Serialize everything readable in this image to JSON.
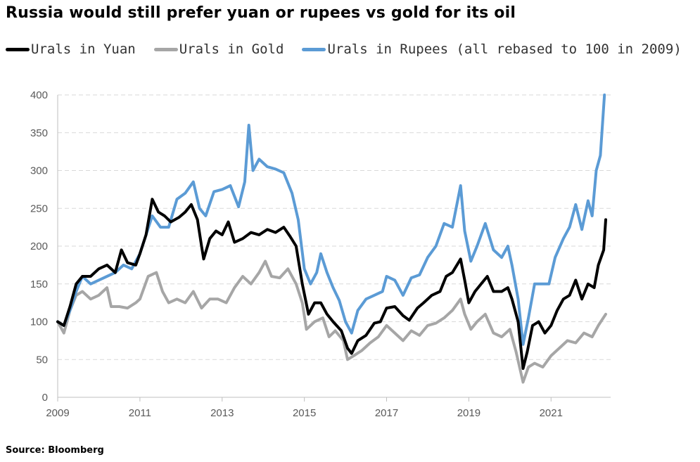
{
  "title": "Russia would still prefer yuan or rupees vs gold for its oil",
  "source": "Source: Bloomberg",
  "chart_data": {
    "type": "line",
    "series": [
      {
        "name": "Urals in Yuan",
        "color": "#000000",
        "points": [
          [
            2009.0,
            100
          ],
          [
            2009.15,
            95
          ],
          [
            2009.3,
            120
          ],
          [
            2009.45,
            150
          ],
          [
            2009.6,
            160
          ],
          [
            2009.8,
            160
          ],
          [
            2010.0,
            170
          ],
          [
            2010.2,
            175
          ],
          [
            2010.4,
            165
          ],
          [
            2010.55,
            195
          ],
          [
            2010.7,
            178
          ],
          [
            2010.9,
            175
          ],
          [
            2011.0,
            190
          ],
          [
            2011.15,
            215
          ],
          [
            2011.3,
            262
          ],
          [
            2011.45,
            245
          ],
          [
            2011.6,
            240
          ],
          [
            2011.75,
            232
          ],
          [
            2011.95,
            238
          ],
          [
            2012.1,
            245
          ],
          [
            2012.25,
            255
          ],
          [
            2012.4,
            235
          ],
          [
            2012.5,
            200
          ],
          [
            2012.55,
            183
          ],
          [
            2012.7,
            210
          ],
          [
            2012.85,
            220
          ],
          [
            2013.0,
            215
          ],
          [
            2013.15,
            232
          ],
          [
            2013.3,
            205
          ],
          [
            2013.5,
            210
          ],
          [
            2013.7,
            218
          ],
          [
            2013.9,
            215
          ],
          [
            2014.1,
            222
          ],
          [
            2014.3,
            218
          ],
          [
            2014.5,
            225
          ],
          [
            2014.65,
            213
          ],
          [
            2014.8,
            200
          ],
          [
            2014.95,
            150
          ],
          [
            2015.1,
            110
          ],
          [
            2015.25,
            125
          ],
          [
            2015.4,
            125
          ],
          [
            2015.55,
            110
          ],
          [
            2015.7,
            100
          ],
          [
            2015.9,
            88
          ],
          [
            2016.05,
            65
          ],
          [
            2016.15,
            58
          ],
          [
            2016.3,
            75
          ],
          [
            2016.5,
            82
          ],
          [
            2016.7,
            98
          ],
          [
            2016.85,
            100
          ],
          [
            2017.0,
            118
          ],
          [
            2017.2,
            120
          ],
          [
            2017.4,
            108
          ],
          [
            2017.55,
            102
          ],
          [
            2017.75,
            118
          ],
          [
            2017.9,
            125
          ],
          [
            2018.1,
            135
          ],
          [
            2018.3,
            140
          ],
          [
            2018.45,
            160
          ],
          [
            2018.6,
            165
          ],
          [
            2018.8,
            183
          ],
          [
            2018.9,
            155
          ],
          [
            2019.0,
            125
          ],
          [
            2019.15,
            140
          ],
          [
            2019.3,
            150
          ],
          [
            2019.45,
            160
          ],
          [
            2019.6,
            140
          ],
          [
            2019.8,
            140
          ],
          [
            2019.95,
            145
          ],
          [
            2020.05,
            130
          ],
          [
            2020.2,
            100
          ],
          [
            2020.32,
            38
          ],
          [
            2020.42,
            60
          ],
          [
            2020.55,
            95
          ],
          [
            2020.7,
            100
          ],
          [
            2020.85,
            85
          ],
          [
            2021.0,
            95
          ],
          [
            2021.15,
            115
          ],
          [
            2021.3,
            130
          ],
          [
            2021.45,
            135
          ],
          [
            2021.6,
            155
          ],
          [
            2021.75,
            130
          ],
          [
            2021.9,
            150
          ],
          [
            2022.05,
            145
          ],
          [
            2022.15,
            175
          ],
          [
            2022.28,
            195
          ],
          [
            2022.33,
            235
          ]
        ]
      },
      {
        "name": "Urals in Gold",
        "color": "#a6a6a6",
        "points": [
          [
            2009.0,
            100
          ],
          [
            2009.15,
            85
          ],
          [
            2009.3,
            115
          ],
          [
            2009.45,
            135
          ],
          [
            2009.6,
            140
          ],
          [
            2009.8,
            130
          ],
          [
            2010.0,
            135
          ],
          [
            2010.2,
            145
          ],
          [
            2010.3,
            120
          ],
          [
            2010.5,
            120
          ],
          [
            2010.7,
            118
          ],
          [
            2010.9,
            125
          ],
          [
            2011.0,
            130
          ],
          [
            2011.2,
            160
          ],
          [
            2011.4,
            165
          ],
          [
            2011.55,
            140
          ],
          [
            2011.7,
            125
          ],
          [
            2011.9,
            130
          ],
          [
            2012.1,
            125
          ],
          [
            2012.3,
            140
          ],
          [
            2012.5,
            118
          ],
          [
            2012.7,
            130
          ],
          [
            2012.9,
            130
          ],
          [
            2013.1,
            125
          ],
          [
            2013.3,
            145
          ],
          [
            2013.5,
            160
          ],
          [
            2013.7,
            150
          ],
          [
            2013.9,
            165
          ],
          [
            2014.05,
            180
          ],
          [
            2014.2,
            160
          ],
          [
            2014.4,
            158
          ],
          [
            2014.6,
            170
          ],
          [
            2014.8,
            150
          ],
          [
            2014.95,
            125
          ],
          [
            2015.05,
            90
          ],
          [
            2015.25,
            100
          ],
          [
            2015.45,
            105
          ],
          [
            2015.6,
            80
          ],
          [
            2015.75,
            88
          ],
          [
            2015.95,
            75
          ],
          [
            2016.05,
            50
          ],
          [
            2016.2,
            55
          ],
          [
            2016.4,
            62
          ],
          [
            2016.6,
            72
          ],
          [
            2016.8,
            80
          ],
          [
            2017.0,
            95
          ],
          [
            2017.2,
            85
          ],
          [
            2017.4,
            75
          ],
          [
            2017.6,
            88
          ],
          [
            2017.8,
            82
          ],
          [
            2018.0,
            95
          ],
          [
            2018.2,
            98
          ],
          [
            2018.4,
            105
          ],
          [
            2018.6,
            115
          ],
          [
            2018.8,
            130
          ],
          [
            2018.9,
            110
          ],
          [
            2019.05,
            90
          ],
          [
            2019.2,
            100
          ],
          [
            2019.4,
            110
          ],
          [
            2019.6,
            85
          ],
          [
            2019.8,
            80
          ],
          [
            2020.0,
            90
          ],
          [
            2020.15,
            60
          ],
          [
            2020.32,
            20
          ],
          [
            2020.45,
            40
          ],
          [
            2020.6,
            45
          ],
          [
            2020.8,
            40
          ],
          [
            2021.0,
            55
          ],
          [
            2021.2,
            65
          ],
          [
            2021.4,
            75
          ],
          [
            2021.6,
            72
          ],
          [
            2021.8,
            85
          ],
          [
            2022.0,
            80
          ],
          [
            2022.15,
            95
          ],
          [
            2022.33,
            110
          ]
        ]
      },
      {
        "name": "Urals in Rupees (all rebased to 100 in 2009)",
        "color": "#5b9bd5",
        "points": [
          [
            2009.0,
            100
          ],
          [
            2009.15,
            95
          ],
          [
            2009.3,
            115
          ],
          [
            2009.45,
            140
          ],
          [
            2009.6,
            160
          ],
          [
            2009.8,
            150
          ],
          [
            2010.0,
            155
          ],
          [
            2010.2,
            160
          ],
          [
            2010.4,
            165
          ],
          [
            2010.6,
            175
          ],
          [
            2010.8,
            170
          ],
          [
            2011.0,
            190
          ],
          [
            2011.15,
            215
          ],
          [
            2011.3,
            240
          ],
          [
            2011.5,
            225
          ],
          [
            2011.7,
            225
          ],
          [
            2011.9,
            262
          ],
          [
            2012.1,
            270
          ],
          [
            2012.3,
            285
          ],
          [
            2012.45,
            250
          ],
          [
            2012.6,
            240
          ],
          [
            2012.8,
            272
          ],
          [
            2013.0,
            275
          ],
          [
            2013.2,
            280
          ],
          [
            2013.4,
            252
          ],
          [
            2013.55,
            285
          ],
          [
            2013.65,
            360
          ],
          [
            2013.75,
            300
          ],
          [
            2013.9,
            315
          ],
          [
            2014.1,
            305
          ],
          [
            2014.3,
            302
          ],
          [
            2014.5,
            297
          ],
          [
            2014.7,
            270
          ],
          [
            2014.85,
            235
          ],
          [
            2015.0,
            170
          ],
          [
            2015.15,
            150
          ],
          [
            2015.3,
            165
          ],
          [
            2015.4,
            190
          ],
          [
            2015.55,
            165
          ],
          [
            2015.7,
            145
          ],
          [
            2015.85,
            128
          ],
          [
            2016.0,
            100
          ],
          [
            2016.15,
            85
          ],
          [
            2016.3,
            115
          ],
          [
            2016.5,
            130
          ],
          [
            2016.7,
            135
          ],
          [
            2016.9,
            140
          ],
          [
            2017.0,
            160
          ],
          [
            2017.2,
            155
          ],
          [
            2017.4,
            135
          ],
          [
            2017.6,
            158
          ],
          [
            2017.8,
            162
          ],
          [
            2018.0,
            185
          ],
          [
            2018.2,
            200
          ],
          [
            2018.4,
            230
          ],
          [
            2018.6,
            225
          ],
          [
            2018.8,
            280
          ],
          [
            2018.9,
            220
          ],
          [
            2019.05,
            180
          ],
          [
            2019.2,
            200
          ],
          [
            2019.4,
            230
          ],
          [
            2019.6,
            195
          ],
          [
            2019.8,
            185
          ],
          [
            2019.95,
            200
          ],
          [
            2020.05,
            175
          ],
          [
            2020.2,
            130
          ],
          [
            2020.32,
            70
          ],
          [
            2020.45,
            105
          ],
          [
            2020.6,
            150
          ],
          [
            2020.8,
            150
          ],
          [
            2020.95,
            150
          ],
          [
            2021.1,
            185
          ],
          [
            2021.3,
            210
          ],
          [
            2021.45,
            225
          ],
          [
            2021.6,
            255
          ],
          [
            2021.75,
            222
          ],
          [
            2021.9,
            260
          ],
          [
            2022.0,
            240
          ],
          [
            2022.1,
            300
          ],
          [
            2022.2,
            320
          ],
          [
            2022.3,
            400
          ]
        ]
      }
    ],
    "xlim": [
      2009,
      2022.45
    ],
    "ylim": [
      0,
      400
    ],
    "xticks": [
      2009,
      2011,
      2013,
      2015,
      2017,
      2019,
      2021
    ],
    "yticks": [
      0,
      50,
      100,
      150,
      200,
      250,
      300,
      350,
      400
    ],
    "grid": "horizontal dashed",
    "legend_position": "top-left, above plot"
  }
}
